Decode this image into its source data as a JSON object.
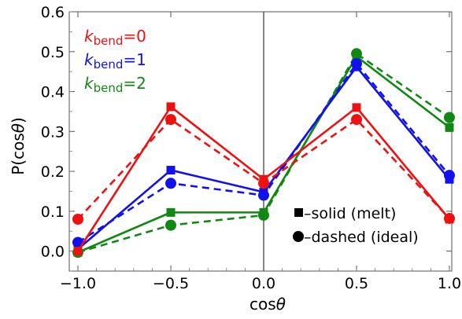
{
  "chart_data": {
    "type": "line",
    "xlabel_main": "cos",
    "xlabel_sym": "θ",
    "ylabel_pre": "P(cos",
    "ylabel_sym": "θ",
    "ylabel_post": ")",
    "xlim": [
      -1.0,
      1.0
    ],
    "ylim": [
      -0.05,
      0.6
    ],
    "xticks": [
      -1.0,
      -0.5,
      0.0,
      0.5,
      1.0
    ],
    "xtick_labels": [
      "−1.0",
      "−0.5",
      "0.0",
      "0.5",
      "1.0"
    ],
    "yticks": [
      0.0,
      0.1,
      0.2,
      0.3,
      0.4,
      0.5,
      0.6
    ],
    "ytick_labels": [
      "0.0",
      "0.1",
      "0.2",
      "0.3",
      "0.4",
      "0.5",
      "0.6"
    ],
    "x": [
      -1.0,
      -0.5,
      0.0,
      0.5,
      1.0
    ],
    "vertical_line_at": 0.0,
    "legend": [
      {
        "k": "k",
        "sub": "bend",
        "val": "=0",
        "color": "#ee1111"
      },
      {
        "k": "k",
        "sub": "bend",
        "val": "=1",
        "color": "#1111ee"
      },
      {
        "k": "k",
        "sub": "bend",
        "val": "=2",
        "color": "#118811"
      }
    ],
    "annotations": {
      "solid": "–solid (melt)",
      "dashed": "–dashed (ideal)"
    },
    "series": [
      {
        "color": "#ee1111",
        "style": "solid",
        "marker": "square",
        "values": [
          0.0,
          0.362,
          0.18,
          0.36,
          0.08
        ]
      },
      {
        "color": "#ee1111",
        "style": "dashed",
        "marker": "circle",
        "values": [
          0.08,
          0.33,
          0.17,
          0.33,
          0.082
        ]
      },
      {
        "color": "#1111ee",
        "style": "solid",
        "marker": "square",
        "values": [
          0.005,
          0.203,
          0.148,
          0.462,
          0.18
        ]
      },
      {
        "color": "#1111ee",
        "style": "dashed",
        "marker": "circle",
        "values": [
          0.022,
          0.17,
          0.14,
          0.47,
          0.19
        ]
      },
      {
        "color": "#118811",
        "style": "solid",
        "marker": "square",
        "values": [
          -0.003,
          0.097,
          0.097,
          0.488,
          0.31
        ]
      },
      {
        "color": "#118811",
        "style": "dashed",
        "marker": "circle",
        "values": [
          -0.003,
          0.065,
          0.09,
          0.495,
          0.335
        ]
      }
    ]
  }
}
